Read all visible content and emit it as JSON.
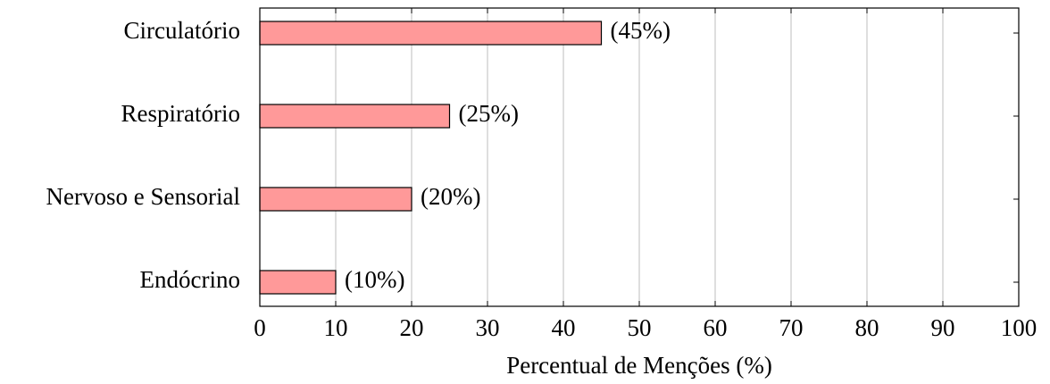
{
  "chart_data": {
    "type": "barh",
    "categories": [
      "Circulatório",
      "Respiratório",
      "Nervoso e Sensorial",
      "Endócrino"
    ],
    "values": [
      45,
      25,
      20,
      10
    ],
    "value_labels": [
      "(45%)",
      "(25%)",
      "(20%)",
      "(10%)"
    ],
    "color": "#ff9999",
    "xlabel": "Percentual de Menções (%)",
    "xlim": [
      0,
      100
    ],
    "xticks": [
      0,
      10,
      20,
      30,
      40,
      50,
      60,
      70,
      80,
      90,
      100
    ],
    "grid": true
  }
}
